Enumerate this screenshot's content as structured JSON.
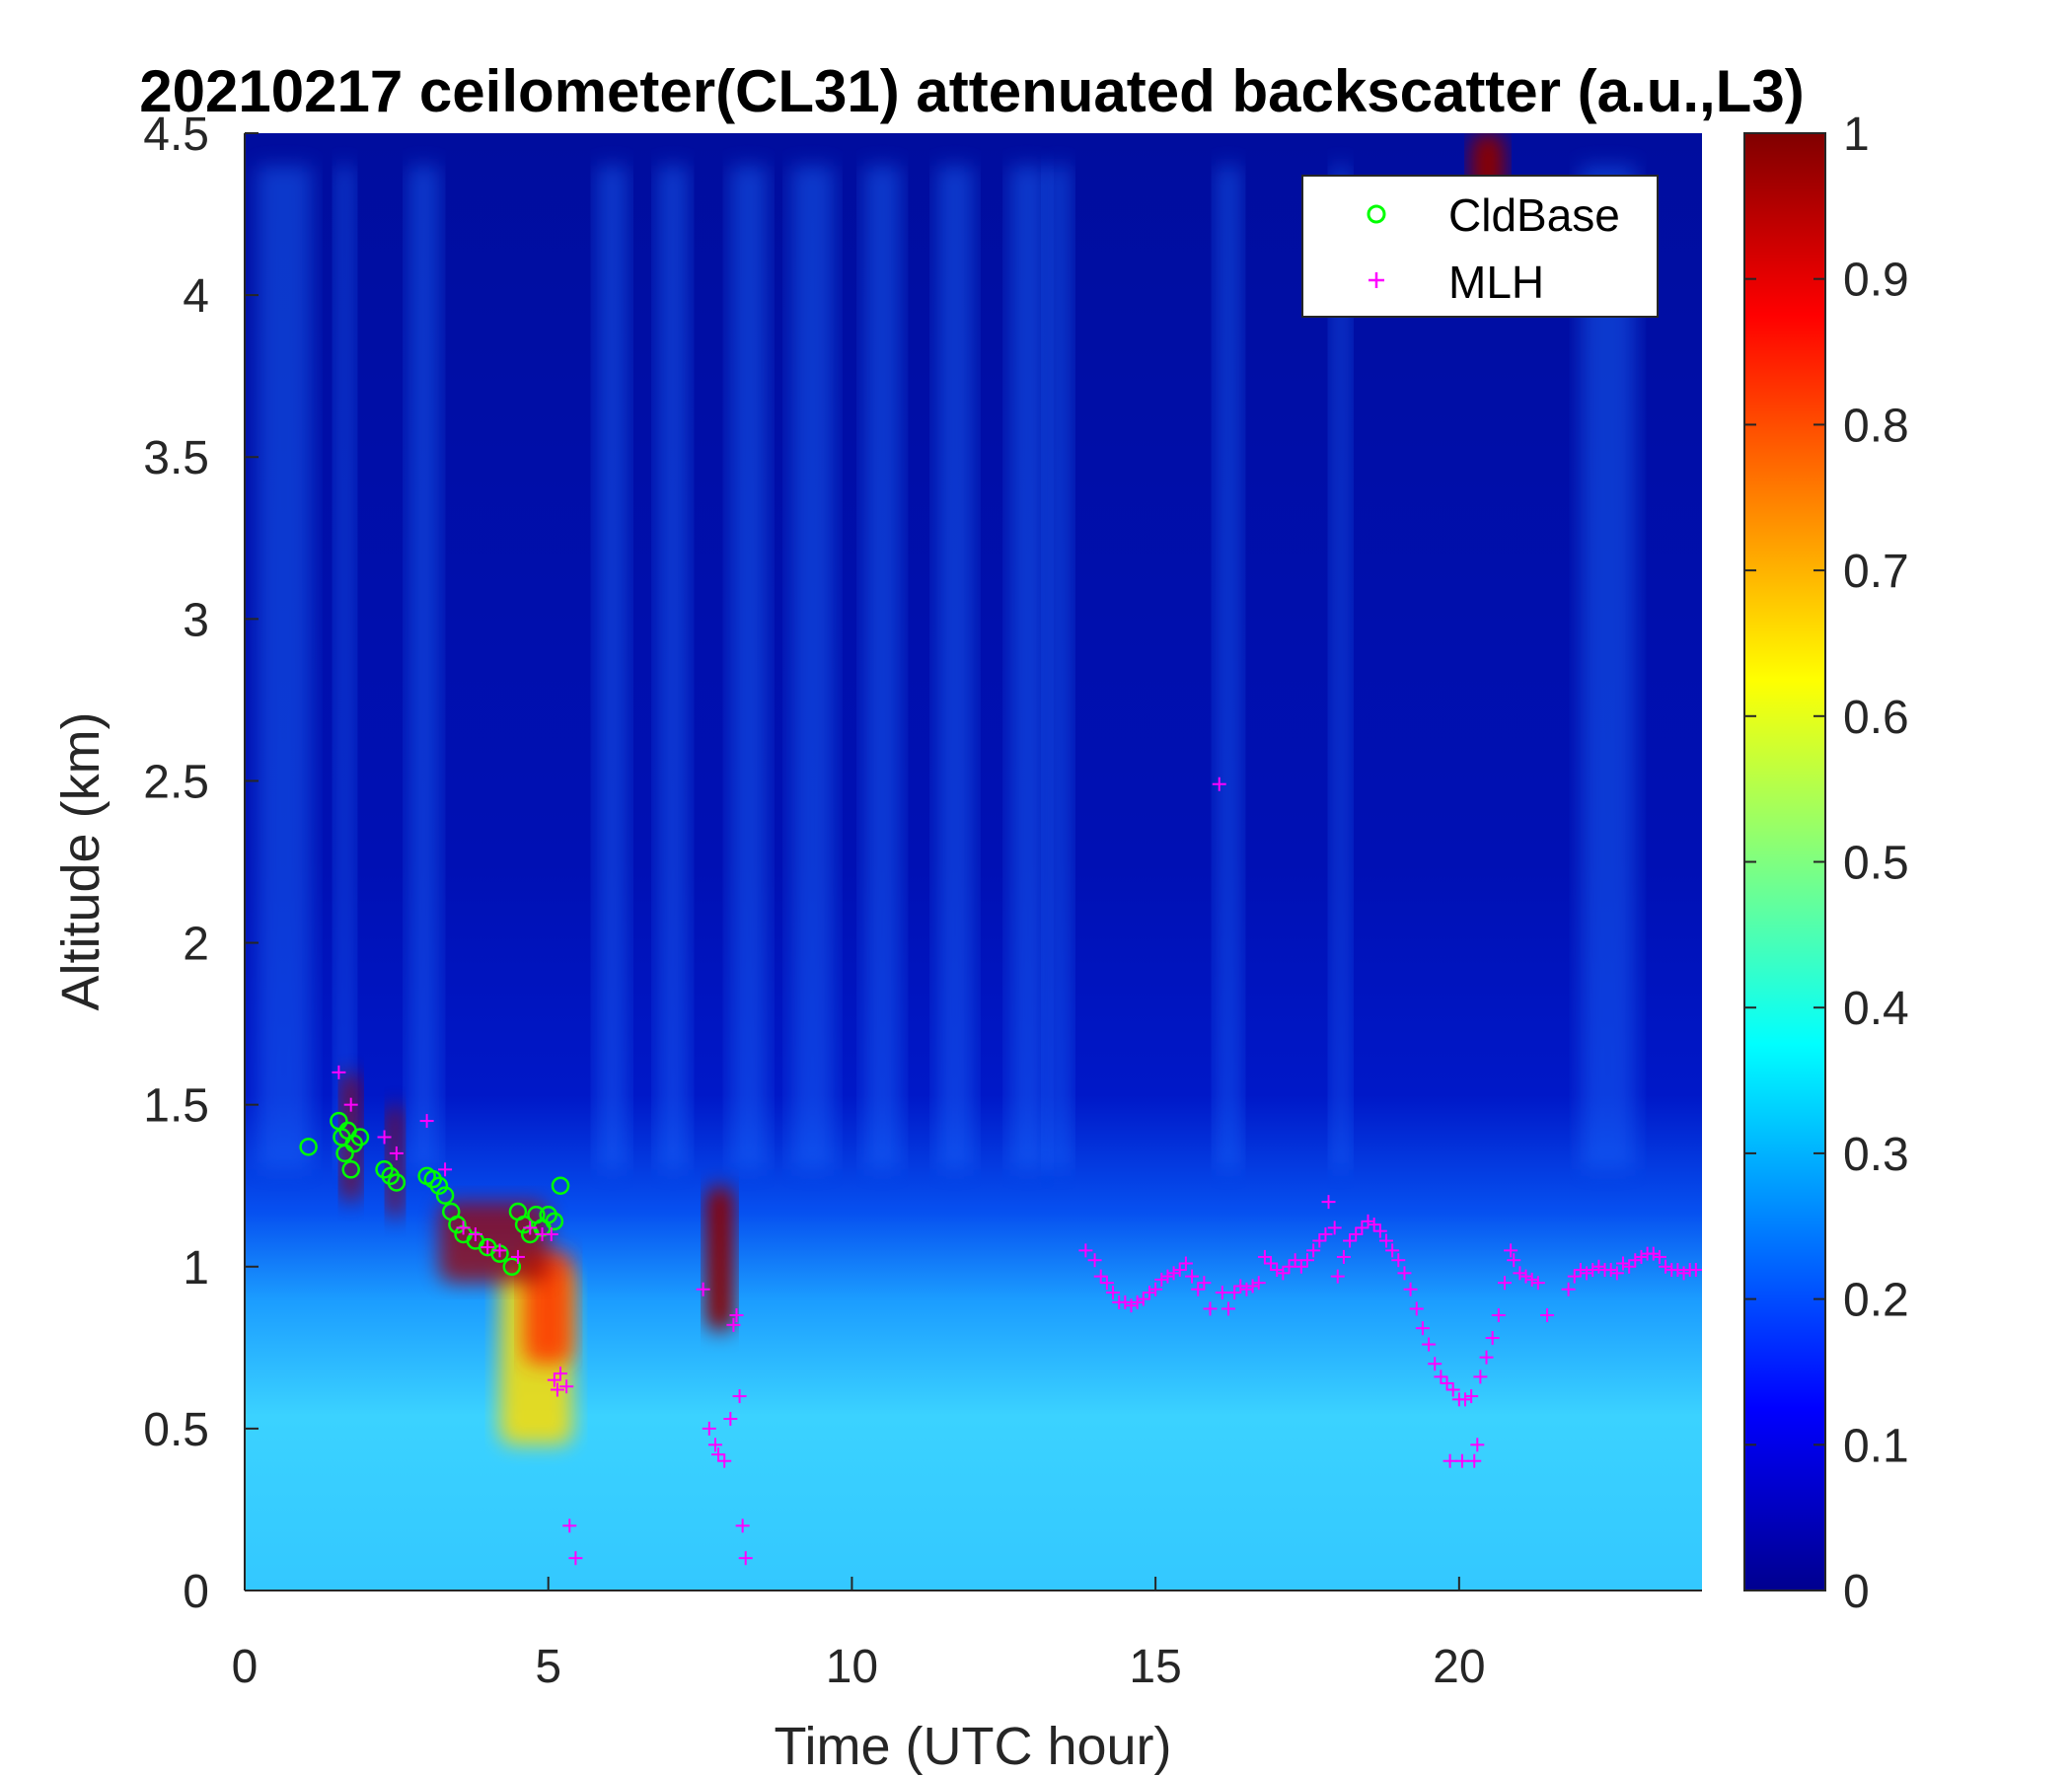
{
  "chart_data": {
    "type": "heatmap",
    "title": "20210217 ceilometer(CL31) attenuated backscatter (a.u.,L3)",
    "xlabel": "Time (UTC hour)",
    "ylabel": "Altitude (km)",
    "xlim": [
      0,
      24
    ],
    "ylim": [
      0,
      4.5
    ],
    "xticks": [
      "0",
      "5",
      "10",
      "15",
      "20"
    ],
    "xtick_values": [
      0,
      5,
      10,
      15,
      20
    ],
    "yticks": [
      "0",
      "0.5",
      "1",
      "1.5",
      "2",
      "2.5",
      "3",
      "3.5",
      "4",
      "4.5"
    ],
    "ytick_values": [
      0,
      0.5,
      1,
      1.5,
      2,
      2.5,
      3,
      3.5,
      4,
      4.5
    ],
    "colorbar": {
      "colormap": "jet",
      "range": [
        0,
        1
      ],
      "ticks": [
        "0",
        "0.1",
        "0.2",
        "0.3",
        "0.4",
        "0.5",
        "0.6",
        "0.7",
        "0.8",
        "0.9",
        "1"
      ],
      "tick_values": [
        0,
        0.1,
        0.2,
        0.3,
        0.4,
        0.5,
        0.6,
        0.7,
        0.8,
        0.9,
        1
      ]
    },
    "legend": {
      "placement": "top-right"
    },
    "series": [
      {
        "name": "CldBase",
        "marker": "circle",
        "color": "#00ff00",
        "points": [
          [
            1.05,
            1.37
          ],
          [
            1.55,
            1.45
          ],
          [
            1.6,
            1.4
          ],
          [
            1.65,
            1.35
          ],
          [
            1.7,
            1.42
          ],
          [
            1.75,
            1.3
          ],
          [
            1.8,
            1.38
          ],
          [
            1.9,
            1.4
          ],
          [
            2.3,
            1.3
          ],
          [
            2.4,
            1.28
          ],
          [
            2.5,
            1.26
          ],
          [
            3.0,
            1.28
          ],
          [
            3.1,
            1.27
          ],
          [
            3.2,
            1.25
          ],
          [
            3.3,
            1.22
          ],
          [
            3.4,
            1.17
          ],
          [
            3.5,
            1.13
          ],
          [
            3.6,
            1.1
          ],
          [
            3.8,
            1.08
          ],
          [
            4.0,
            1.06
          ],
          [
            4.2,
            1.04
          ],
          [
            4.4,
            1.0
          ],
          [
            4.5,
            1.17
          ],
          [
            4.6,
            1.13
          ],
          [
            4.7,
            1.1
          ],
          [
            4.8,
            1.16
          ],
          [
            4.9,
            1.12
          ],
          [
            5.0,
            1.16
          ],
          [
            5.1,
            1.14
          ],
          [
            5.2,
            1.25
          ]
        ]
      },
      {
        "name": "MLH",
        "marker": "plus",
        "color": "#ff00ff",
        "points": [
          [
            1.55,
            1.6
          ],
          [
            1.75,
            1.5
          ],
          [
            2.3,
            1.4
          ],
          [
            2.5,
            1.35
          ],
          [
            3.0,
            1.45
          ],
          [
            3.3,
            1.3
          ],
          [
            3.6,
            1.12
          ],
          [
            3.8,
            1.1
          ],
          [
            4.0,
            1.06
          ],
          [
            4.2,
            1.05
          ],
          [
            4.5,
            1.03
          ],
          [
            4.7,
            1.12
          ],
          [
            4.9,
            1.1
          ],
          [
            5.05,
            1.1
          ],
          [
            5.1,
            0.65
          ],
          [
            5.15,
            0.62
          ],
          [
            5.2,
            0.67
          ],
          [
            5.3,
            0.63
          ],
          [
            5.35,
            0.2
          ],
          [
            5.45,
            0.1
          ],
          [
            7.55,
            0.93
          ],
          [
            7.65,
            0.5
          ],
          [
            7.75,
            0.45
          ],
          [
            7.8,
            0.42
          ],
          [
            7.9,
            0.4
          ],
          [
            8.0,
            0.53
          ],
          [
            8.05,
            0.82
          ],
          [
            8.1,
            0.85
          ],
          [
            8.15,
            0.6
          ],
          [
            8.2,
            0.2
          ],
          [
            8.25,
            0.1
          ],
          [
            13.85,
            1.05
          ],
          [
            14.0,
            1.02
          ],
          [
            14.1,
            0.97
          ],
          [
            14.2,
            0.95
          ],
          [
            14.3,
            0.92
          ],
          [
            14.4,
            0.89
          ],
          [
            14.5,
            0.89
          ],
          [
            14.6,
            0.88
          ],
          [
            14.7,
            0.89
          ],
          [
            14.8,
            0.9
          ],
          [
            14.9,
            0.92
          ],
          [
            15.0,
            0.93
          ],
          [
            15.1,
            0.96
          ],
          [
            15.2,
            0.97
          ],
          [
            15.3,
            0.98
          ],
          [
            15.4,
            0.99
          ],
          [
            15.5,
            1.01
          ],
          [
            15.6,
            0.97
          ],
          [
            15.7,
            0.93
          ],
          [
            15.8,
            0.95
          ],
          [
            15.9,
            0.87
          ],
          [
            16.05,
            2.49
          ],
          [
            16.1,
            0.92
          ],
          [
            16.2,
            0.87
          ],
          [
            16.3,
            0.92
          ],
          [
            16.4,
            0.94
          ],
          [
            16.5,
            0.93
          ],
          [
            16.6,
            0.94
          ],
          [
            16.7,
            0.95
          ],
          [
            16.8,
            1.03
          ],
          [
            16.9,
            1.01
          ],
          [
            17.0,
            0.99
          ],
          [
            17.1,
            0.98
          ],
          [
            17.2,
            1.0
          ],
          [
            17.3,
            1.02
          ],
          [
            17.4,
            1.0
          ],
          [
            17.5,
            1.02
          ],
          [
            17.6,
            1.05
          ],
          [
            17.7,
            1.08
          ],
          [
            17.8,
            1.1
          ],
          [
            17.85,
            1.2
          ],
          [
            17.95,
            1.12
          ],
          [
            18.0,
            0.97
          ],
          [
            18.1,
            1.03
          ],
          [
            18.2,
            1.08
          ],
          [
            18.3,
            1.1
          ],
          [
            18.4,
            1.12
          ],
          [
            18.5,
            1.14
          ],
          [
            18.6,
            1.13
          ],
          [
            18.7,
            1.11
          ],
          [
            18.8,
            1.08
          ],
          [
            18.9,
            1.05
          ],
          [
            19.0,
            1.02
          ],
          [
            19.1,
            0.98
          ],
          [
            19.2,
            0.93
          ],
          [
            19.3,
            0.87
          ],
          [
            19.4,
            0.81
          ],
          [
            19.5,
            0.76
          ],
          [
            19.6,
            0.7
          ],
          [
            19.7,
            0.66
          ],
          [
            19.8,
            0.64
          ],
          [
            19.85,
            0.4
          ],
          [
            19.9,
            0.62
          ],
          [
            20.0,
            0.59
          ],
          [
            20.05,
            0.4
          ],
          [
            20.1,
            0.59
          ],
          [
            20.2,
            0.6
          ],
          [
            20.25,
            0.4
          ],
          [
            20.3,
            0.45
          ],
          [
            20.35,
            0.66
          ],
          [
            20.45,
            0.72
          ],
          [
            20.55,
            0.78
          ],
          [
            20.65,
            0.85
          ],
          [
            20.75,
            0.95
          ],
          [
            20.85,
            1.05
          ],
          [
            20.9,
            1.02
          ],
          [
            21.0,
            0.98
          ],
          [
            21.1,
            0.97
          ],
          [
            21.2,
            0.96
          ],
          [
            21.3,
            0.95
          ],
          [
            21.45,
            0.85
          ],
          [
            21.8,
            0.93
          ],
          [
            21.9,
            0.97
          ],
          [
            22.0,
            0.99
          ],
          [
            22.1,
            0.98
          ],
          [
            22.2,
            0.99
          ],
          [
            22.3,
            1.0
          ],
          [
            22.4,
            0.99
          ],
          [
            22.5,
            0.99
          ],
          [
            22.6,
            0.98
          ],
          [
            22.7,
            1.01
          ],
          [
            22.8,
            1.0
          ],
          [
            22.9,
            1.02
          ],
          [
            23.0,
            1.03
          ],
          [
            23.1,
            1.04
          ],
          [
            23.2,
            1.04
          ],
          [
            23.3,
            1.03
          ],
          [
            23.4,
            1.0
          ],
          [
            23.5,
            0.99
          ],
          [
            23.6,
            0.99
          ],
          [
            23.7,
            0.98
          ],
          [
            23.8,
            0.99
          ],
          [
            23.9,
            0.99
          ]
        ]
      }
    ]
  }
}
